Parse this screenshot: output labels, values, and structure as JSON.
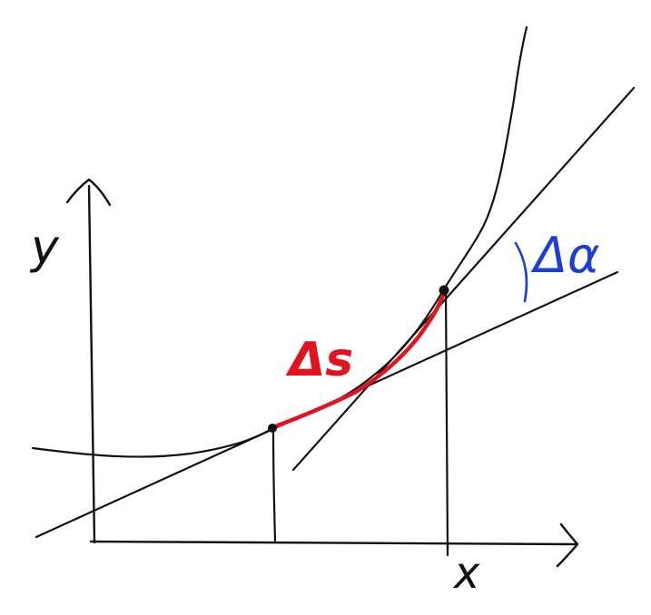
{
  "labels": {
    "y_axis": "y",
    "x_axis": "x",
    "arc_length": "Δs",
    "angle_change": "Δα"
  },
  "colors": {
    "ink": "#111111",
    "arc": "#e0141e",
    "angle": "#1b3fd6",
    "background": "#ffffff"
  }
}
